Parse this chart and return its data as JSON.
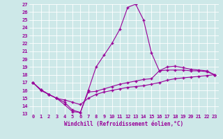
{
  "xlabel": "Windchill (Refroidissement éolien,°C)",
  "background_color": "#cde8e8",
  "line_color": "#990099",
  "hours": [
    0,
    1,
    2,
    3,
    4,
    5,
    6,
    7,
    8,
    9,
    10,
    11,
    12,
    13,
    14,
    15,
    16,
    17,
    18,
    19,
    20,
    21,
    22,
    23
  ],
  "line1": [
    17,
    16.1,
    15.5,
    15.0,
    14.2,
    13.3,
    13.2,
    16.0,
    19.0,
    20.5,
    22.0,
    23.8,
    26.6,
    27.0,
    25.0,
    20.8,
    18.5,
    19.0,
    19.1,
    18.9,
    18.7,
    18.6,
    18.5,
    18.0
  ],
  "line2": [
    17,
    16.1,
    15.5,
    15.0,
    14.5,
    13.5,
    13.2,
    15.8,
    15.9,
    16.2,
    16.5,
    16.8,
    17.0,
    17.2,
    17.4,
    17.5,
    18.5,
    18.6,
    18.6,
    18.6,
    18.5,
    18.5,
    18.4,
    18.0
  ],
  "line3": [
    17.0,
    16.0,
    15.5,
    15.0,
    14.8,
    14.5,
    14.2,
    15.0,
    15.5,
    15.8,
    16.0,
    16.2,
    16.4,
    16.5,
    16.6,
    16.8,
    17.0,
    17.3,
    17.5,
    17.6,
    17.7,
    17.8,
    17.9,
    18.0
  ],
  "ylim": [
    13,
    27
  ],
  "xlim": [
    -0.5,
    23.5
  ],
  "yticks": [
    13,
    14,
    15,
    16,
    17,
    18,
    19,
    20,
    21,
    22,
    23,
    24,
    25,
    26,
    27
  ],
  "xticks": [
    0,
    1,
    2,
    3,
    4,
    5,
    6,
    7,
    8,
    9,
    10,
    11,
    12,
    13,
    14,
    15,
    16,
    17,
    18,
    19,
    20,
    21,
    22,
    23
  ]
}
